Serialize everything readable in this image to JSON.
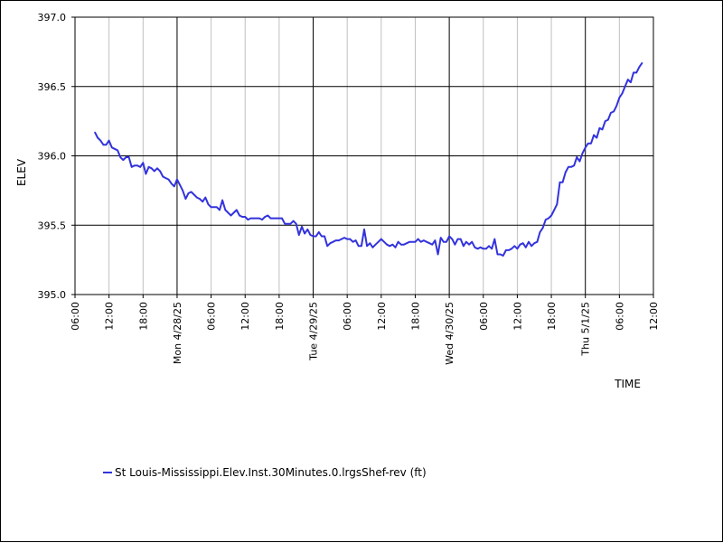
{
  "chart_data": {
    "type": "line",
    "xlabel": "TIME",
    "ylabel": "ELEV",
    "ylim": [
      395.0,
      397.0
    ],
    "y_ticks": [
      "395.0",
      "395.5",
      "396.0",
      "396.5",
      "397.0"
    ],
    "x_range_hours": [
      0,
      102
    ],
    "x_tick_labels": [
      "06:00",
      "12:00",
      "18:00",
      "Mon 4/28/25",
      "06:00",
      "12:00",
      "18:00",
      "Tue 4/29/25",
      "06:00",
      "12:00",
      "18:00",
      "Wed 4/30/25",
      "06:00",
      "12:00",
      "18:00",
      "Thu 5/1/25",
      "06:00",
      "12:00"
    ],
    "grid": true,
    "legend_position": "bottom-left",
    "series": [
      {
        "name": "St Louis-Mississippi.Elev.Inst.30Minutes.0.lrgsShef-rev (ft)",
        "color": "#3333dd",
        "points": [
          [
            3.5,
            396.17
          ],
          [
            4.0,
            396.13
          ],
          [
            4.5,
            396.11
          ],
          [
            5.0,
            396.08
          ],
          [
            5.5,
            396.08
          ],
          [
            6.0,
            396.11
          ],
          [
            6.5,
            396.06
          ],
          [
            7.0,
            396.05
          ],
          [
            7.5,
            396.04
          ],
          [
            8.0,
            395.99
          ],
          [
            8.5,
            395.97
          ],
          [
            9.0,
            395.99
          ],
          [
            9.5,
            395.99
          ],
          [
            10.0,
            395.92
          ],
          [
            10.5,
            395.93
          ],
          [
            11.0,
            395.93
          ],
          [
            11.5,
            395.92
          ],
          [
            12.0,
            395.95
          ],
          [
            12.5,
            395.87
          ],
          [
            13.0,
            395.92
          ],
          [
            13.5,
            395.91
          ],
          [
            14.0,
            395.89
          ],
          [
            14.5,
            395.91
          ],
          [
            15.0,
            395.89
          ],
          [
            15.5,
            395.85
          ],
          [
            16.0,
            395.84
          ],
          [
            16.5,
            395.83
          ],
          [
            17.0,
            395.8
          ],
          [
            17.5,
            395.78
          ],
          [
            18.0,
            395.83
          ],
          [
            18.5,
            395.79
          ],
          [
            19.0,
            395.75
          ],
          [
            19.5,
            395.69
          ],
          [
            20.0,
            395.73
          ],
          [
            20.5,
            395.74
          ],
          [
            21.0,
            395.72
          ],
          [
            21.5,
            395.7
          ],
          [
            22.0,
            395.69
          ],
          [
            22.5,
            395.67
          ],
          [
            23.0,
            395.7
          ],
          [
            23.5,
            395.65
          ],
          [
            24.0,
            395.63
          ],
          [
            24.5,
            395.63
          ],
          [
            25.0,
            395.63
          ],
          [
            25.5,
            395.61
          ],
          [
            26.0,
            395.68
          ],
          [
            26.5,
            395.61
          ],
          [
            27.0,
            395.59
          ],
          [
            27.5,
            395.57
          ],
          [
            28.0,
            395.59
          ],
          [
            28.5,
            395.61
          ],
          [
            29.0,
            395.57
          ],
          [
            29.5,
            395.56
          ],
          [
            30.0,
            395.56
          ],
          [
            30.5,
            395.54
          ],
          [
            31.0,
            395.55
          ],
          [
            31.5,
            395.55
          ],
          [
            32.0,
            395.55
          ],
          [
            32.5,
            395.55
          ],
          [
            33.0,
            395.54
          ],
          [
            33.5,
            395.56
          ],
          [
            34.0,
            395.57
          ],
          [
            34.5,
            395.55
          ],
          [
            35.0,
            395.55
          ],
          [
            35.5,
            395.55
          ],
          [
            36.0,
            395.55
          ],
          [
            36.5,
            395.55
          ],
          [
            37.0,
            395.51
          ],
          [
            37.5,
            395.51
          ],
          [
            38.0,
            395.51
          ],
          [
            38.5,
            395.53
          ],
          [
            39.0,
            395.51
          ],
          [
            39.5,
            395.43
          ],
          [
            40.0,
            395.49
          ],
          [
            40.5,
            395.44
          ],
          [
            41.0,
            395.47
          ],
          [
            41.5,
            395.43
          ],
          [
            42.0,
            395.42
          ],
          [
            42.5,
            395.42
          ],
          [
            43.0,
            395.45
          ],
          [
            43.5,
            395.42
          ],
          [
            44.0,
            395.42
          ],
          [
            44.5,
            395.35
          ],
          [
            45.0,
            395.37
          ],
          [
            45.5,
            395.38
          ],
          [
            46.0,
            395.39
          ],
          [
            46.5,
            395.39
          ],
          [
            47.0,
            395.4
          ],
          [
            47.5,
            395.41
          ],
          [
            48.0,
            395.4
          ],
          [
            48.5,
            395.4
          ],
          [
            49.0,
            395.38
          ],
          [
            49.5,
            395.39
          ],
          [
            50.0,
            395.35
          ],
          [
            50.5,
            395.35
          ],
          [
            51.0,
            395.47
          ],
          [
            51.5,
            395.35
          ],
          [
            52.0,
            395.37
          ],
          [
            52.5,
            395.34
          ],
          [
            53.0,
            395.36
          ],
          [
            53.5,
            395.38
          ],
          [
            54.0,
            395.4
          ],
          [
            54.5,
            395.38
          ],
          [
            55.0,
            395.36
          ],
          [
            55.5,
            395.35
          ],
          [
            56.0,
            395.36
          ],
          [
            56.5,
            395.34
          ],
          [
            57.0,
            395.38
          ],
          [
            57.5,
            395.36
          ],
          [
            58.0,
            395.36
          ],
          [
            58.5,
            395.37
          ],
          [
            59.0,
            395.38
          ],
          [
            59.5,
            395.38
          ],
          [
            60.0,
            395.38
          ],
          [
            60.5,
            395.4
          ],
          [
            61.0,
            395.38
          ],
          [
            61.5,
            395.39
          ],
          [
            62.0,
            395.38
          ],
          [
            62.5,
            395.37
          ],
          [
            63.0,
            395.36
          ],
          [
            63.5,
            395.39
          ],
          [
            64.0,
            395.29
          ],
          [
            64.5,
            395.41
          ],
          [
            65.0,
            395.38
          ],
          [
            65.5,
            395.38
          ],
          [
            66.0,
            395.42
          ],
          [
            66.5,
            395.4
          ],
          [
            67.0,
            395.36
          ],
          [
            67.5,
            395.4
          ],
          [
            68.0,
            395.4
          ],
          [
            68.5,
            395.35
          ],
          [
            69.0,
            395.38
          ],
          [
            69.5,
            395.36
          ],
          [
            70.0,
            395.38
          ],
          [
            70.5,
            395.34
          ],
          [
            71.0,
            395.33
          ],
          [
            71.5,
            395.34
          ],
          [
            72.0,
            395.33
          ],
          [
            72.5,
            395.33
          ],
          [
            73.0,
            395.35
          ],
          [
            73.5,
            395.33
          ],
          [
            74.0,
            395.4
          ],
          [
            74.5,
            395.29
          ],
          [
            75.0,
            395.29
          ],
          [
            75.5,
            395.28
          ],
          [
            76.0,
            395.32
          ],
          [
            76.5,
            395.32
          ],
          [
            77.0,
            395.33
          ],
          [
            77.5,
            395.35
          ],
          [
            78.0,
            395.33
          ],
          [
            78.5,
            395.36
          ],
          [
            79.0,
            395.37
          ],
          [
            79.5,
            395.34
          ],
          [
            80.0,
            395.38
          ],
          [
            80.5,
            395.35
          ],
          [
            81.0,
            395.37
          ],
          [
            81.5,
            395.38
          ],
          [
            82.0,
            395.45
          ],
          [
            82.5,
            395.48
          ],
          [
            83.0,
            395.54
          ],
          [
            83.5,
            395.55
          ],
          [
            84.0,
            395.57
          ],
          [
            84.5,
            395.61
          ],
          [
            85.0,
            395.65
          ],
          [
            85.5,
            395.81
          ],
          [
            86.0,
            395.81
          ],
          [
            86.5,
            395.88
          ],
          [
            87.0,
            395.92
          ],
          [
            87.5,
            395.92
          ],
          [
            88.0,
            395.93
          ],
          [
            88.5,
            395.99
          ],
          [
            89.0,
            395.96
          ],
          [
            89.5,
            396.02
          ],
          [
            90.0,
            396.06
          ],
          [
            90.5,
            396.09
          ],
          [
            91.0,
            396.09
          ],
          [
            91.5,
            396.15
          ],
          [
            92.0,
            396.13
          ],
          [
            92.5,
            396.2
          ],
          [
            93.0,
            396.19
          ],
          [
            93.5,
            396.25
          ],
          [
            94.0,
            396.26
          ],
          [
            94.5,
            396.31
          ],
          [
            95.0,
            396.32
          ],
          [
            95.5,
            396.36
          ],
          [
            96.0,
            396.42
          ],
          [
            96.5,
            396.45
          ],
          [
            97.0,
            396.5
          ],
          [
            97.5,
            396.55
          ],
          [
            98.0,
            396.53
          ],
          [
            98.5,
            396.6
          ],
          [
            99.0,
            396.6
          ],
          [
            99.5,
            396.64
          ],
          [
            100.0,
            396.67
          ]
        ]
      }
    ]
  }
}
